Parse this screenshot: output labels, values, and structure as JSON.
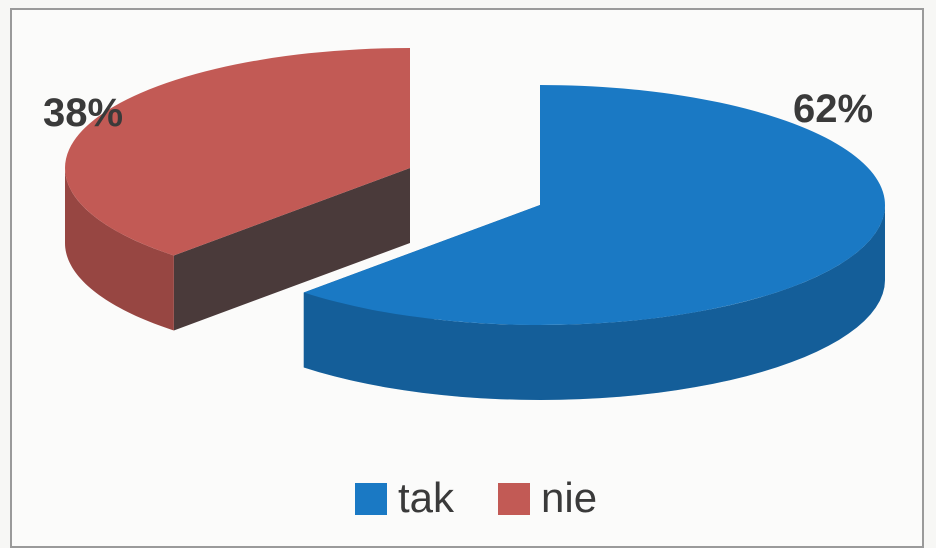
{
  "chart_data": {
    "type": "pie",
    "style": "3d-exploded",
    "title": "",
    "legend_position": "bottom",
    "categories": [
      "tak",
      "nie"
    ],
    "values": [
      62,
      38
    ],
    "labels": [
      "62%",
      "38%"
    ],
    "colors": [
      "#1a79c4",
      "#c25a55"
    ],
    "side_colors": [
      "#11558c",
      "#4a3a3a"
    ]
  }
}
